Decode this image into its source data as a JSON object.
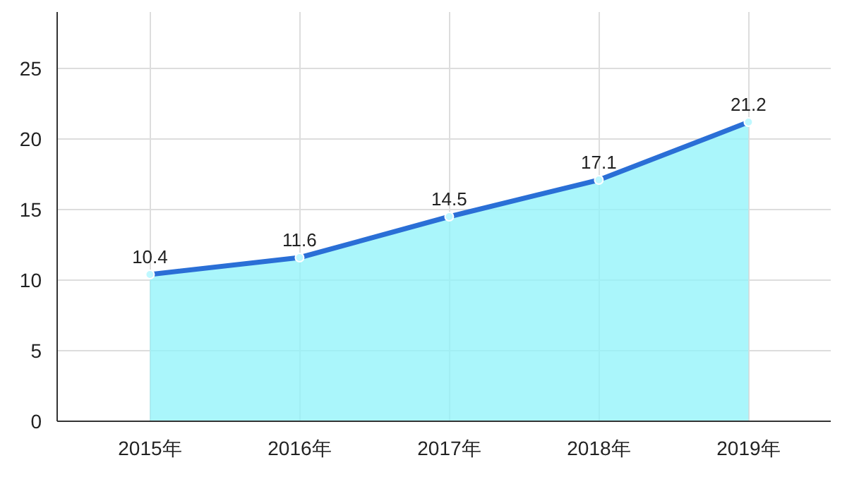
{
  "chart_data": {
    "type": "area",
    "categories": [
      "2015年",
      "2016年",
      "2017年",
      "2018年",
      "2019年"
    ],
    "series": [
      {
        "color": "#2a6fd6",
        "values": [
          10.4,
          11.6,
          14.5,
          17.1,
          21.2
        ]
      }
    ],
    "ylim": [
      0,
      29
    ],
    "yticks": [
      0,
      5,
      10,
      15,
      20,
      25
    ],
    "grid": true,
    "marker": "circle",
    "line_style": "solid",
    "data_labels": true
  }
}
